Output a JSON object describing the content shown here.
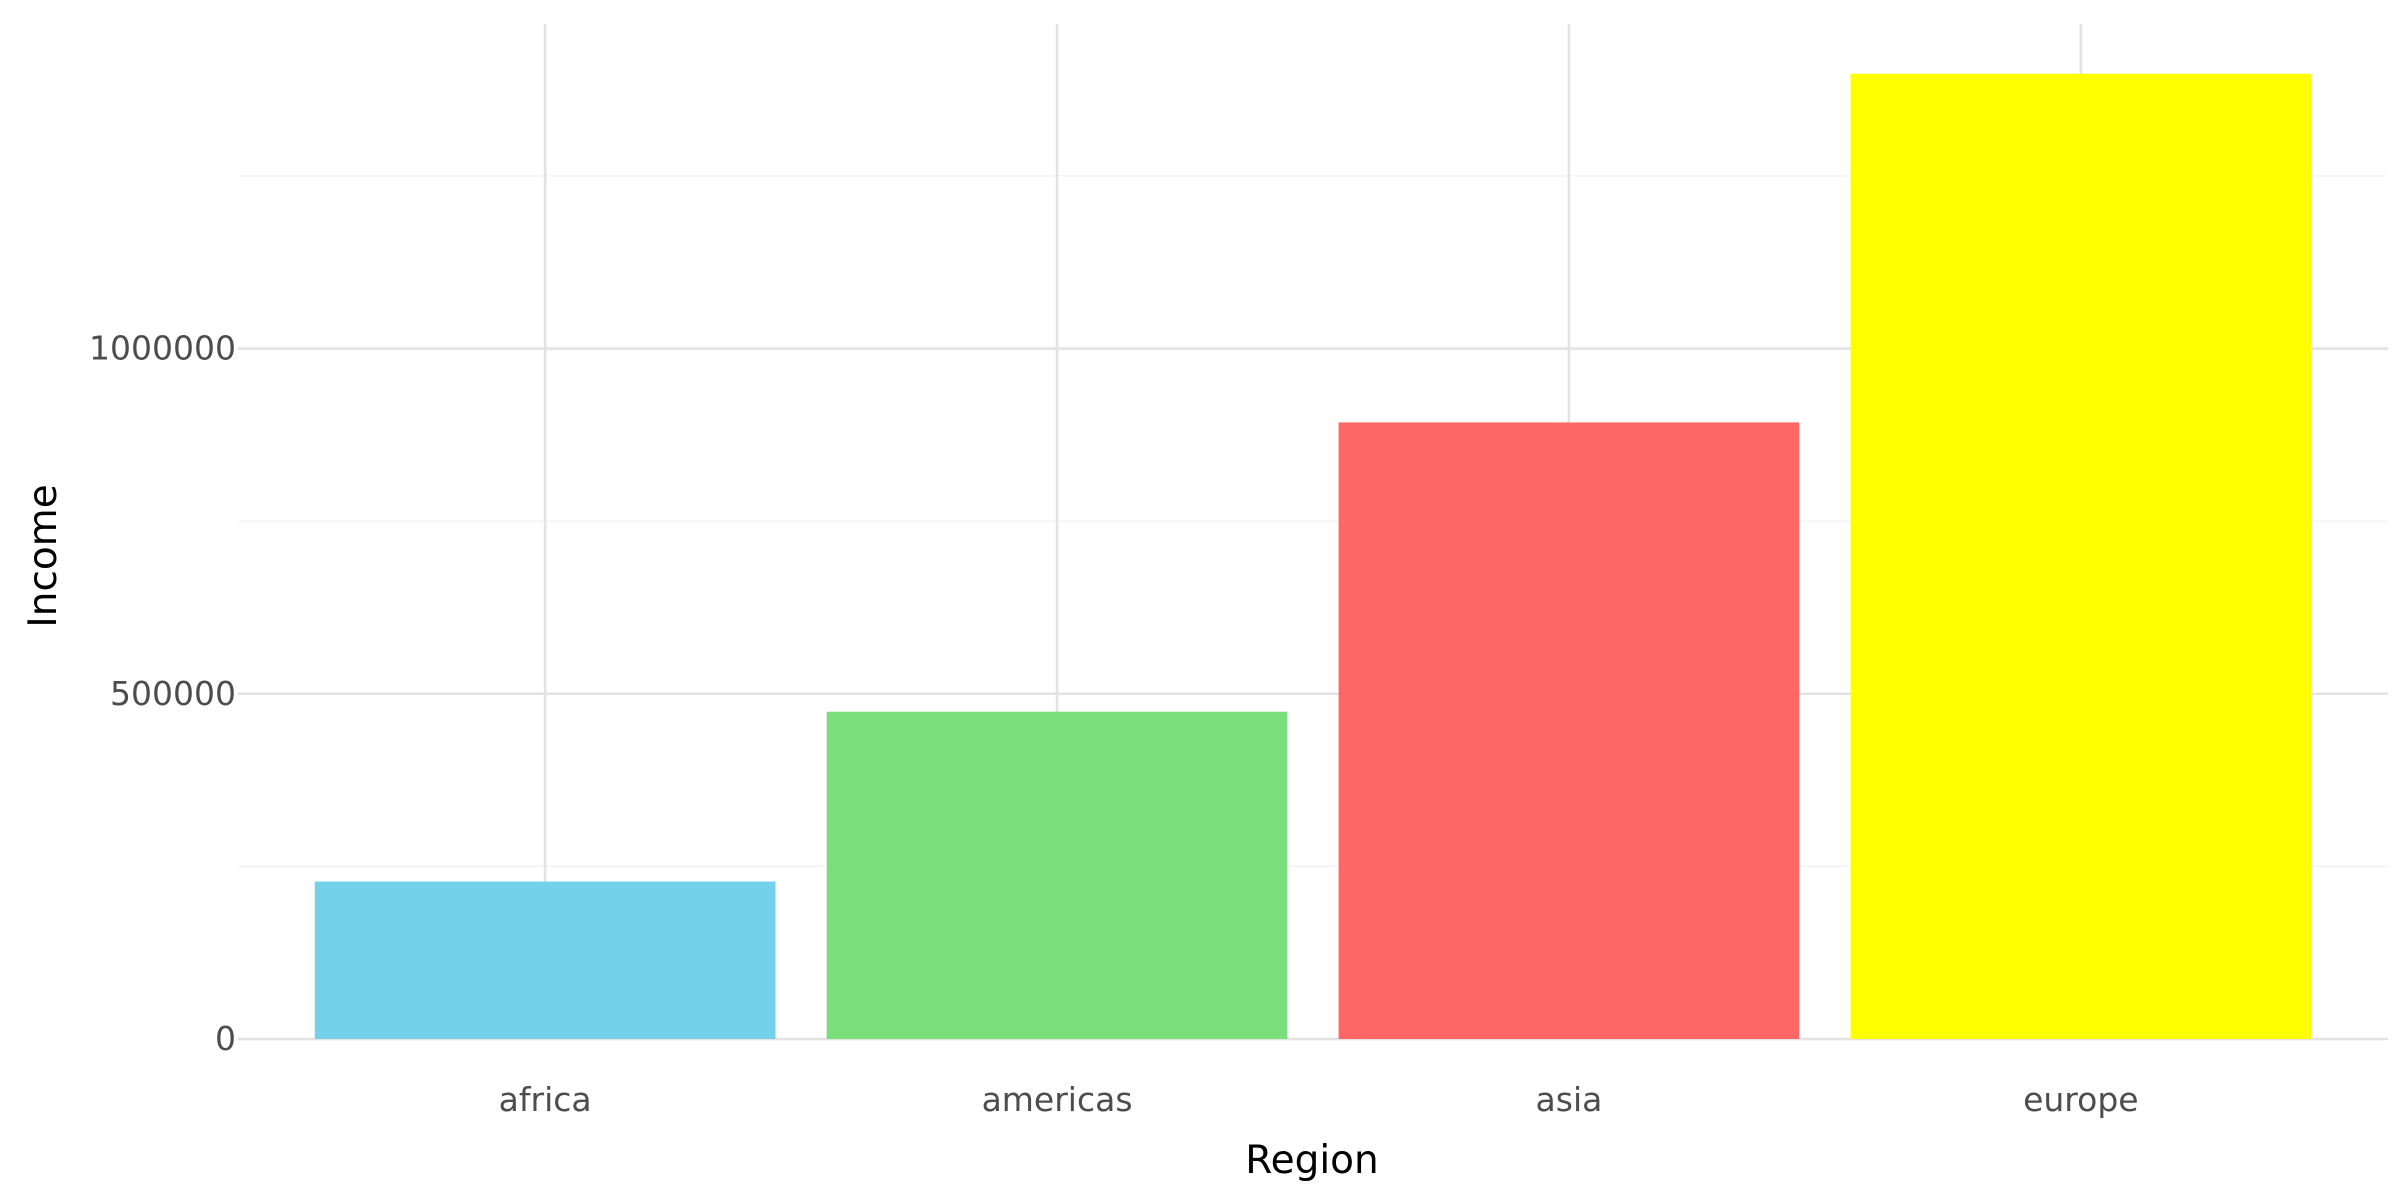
{
  "chart_data": {
    "type": "bar",
    "title": "",
    "xlabel": "Region",
    "ylabel": "Income",
    "categories": [
      "africa",
      "americas",
      "asia",
      "europe"
    ],
    "values": [
      228000,
      474000,
      893000,
      1398000
    ],
    "colors": [
      "#74d1ea",
      "#7ade7a",
      "#ff6666",
      "#ffff00"
    ],
    "ylim": [
      0,
      1470000
    ],
    "y_ticks": [
      0,
      500000,
      1000000
    ],
    "y_tick_labels": [
      "0",
      "500000",
      "1000000"
    ],
    "y_minor_ticks": [
      250000,
      750000,
      1250000
    ],
    "grid": true,
    "legend": "none"
  }
}
